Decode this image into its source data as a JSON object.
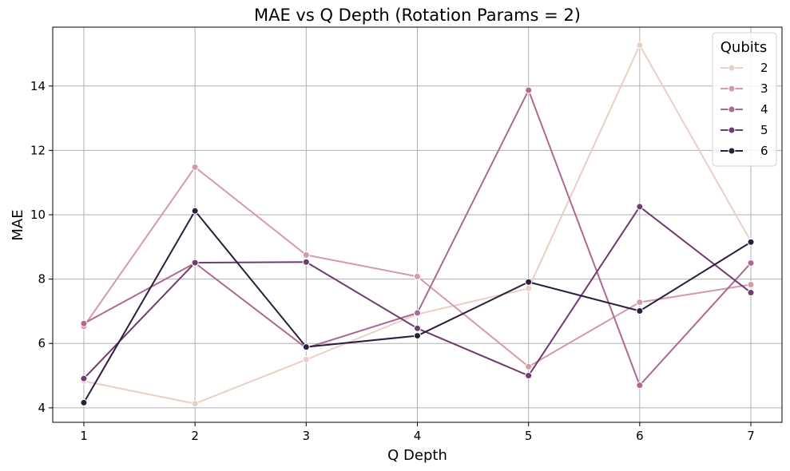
{
  "chart_data": {
    "type": "line",
    "title": "MAE vs Q Depth (Rotation Params = 2)",
    "xlabel": "Q Depth",
    "ylabel": "MAE",
    "x": [
      1,
      2,
      3,
      4,
      5,
      6,
      7
    ],
    "xlim": [
      0.72,
      7.28
    ],
    "ylim": [
      3.55,
      15.83
    ],
    "xticks": [
      "1",
      "2",
      "3",
      "4",
      "5",
      "6",
      "7"
    ],
    "yticks": [
      "4",
      "6",
      "8",
      "10",
      "12",
      "14"
    ],
    "grid": true,
    "legend": {
      "title": "Qubits",
      "placement": "top-right"
    },
    "series": [
      {
        "name": "2",
        "color": "#ebcec6",
        "values": [
          4.83,
          4.13,
          5.5,
          6.91,
          7.71,
          15.27,
          9.17
        ]
      },
      {
        "name": "3",
        "color": "#d49aa9",
        "values": [
          6.53,
          11.48,
          8.75,
          8.08,
          5.28,
          7.28,
          7.83
        ]
      },
      {
        "name": "4",
        "color": "#ad6991",
        "values": [
          6.62,
          8.5,
          5.86,
          6.95,
          13.87,
          4.7,
          8.5
        ]
      },
      {
        "name": "5",
        "color": "#6e3c6e",
        "values": [
          4.91,
          8.51,
          8.53,
          6.47,
          5.0,
          10.25,
          7.58
        ]
      },
      {
        "name": "6",
        "color": "#2d1e3e",
        "values": [
          4.16,
          10.12,
          5.89,
          6.24,
          7.91,
          7.01,
          9.15
        ]
      }
    ]
  }
}
